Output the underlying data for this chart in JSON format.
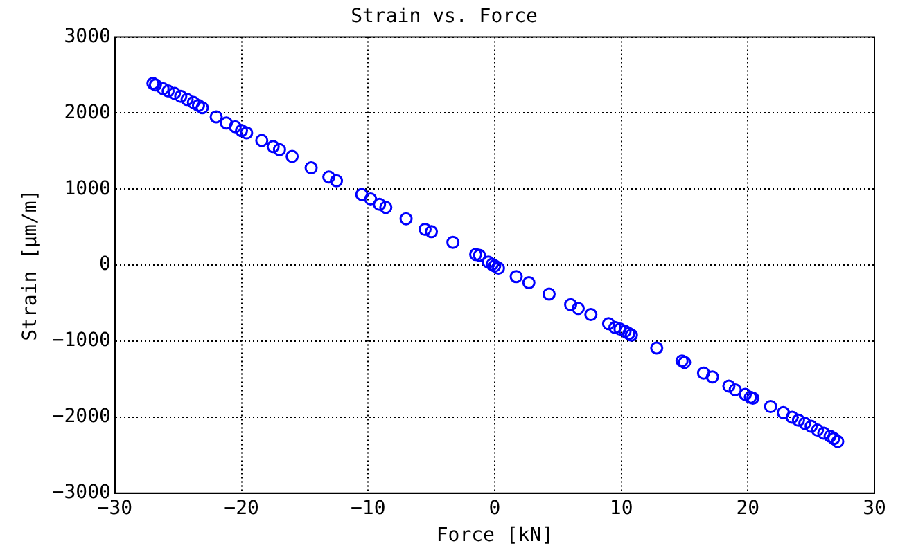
{
  "chart_data": {
    "type": "scatter",
    "title": "Strain vs. Force",
    "xlabel": "Force [kN]",
    "ylabel": "Strain [μm/m]",
    "xlim": [
      -30,
      30
    ],
    "xticks": [
      -30,
      -20,
      -10,
      0,
      10,
      20,
      30
    ],
    "ylim": [
      -3000,
      3000
    ],
    "yticks": [
      -3000,
      -2000,
      -1000,
      0,
      1000,
      2000,
      3000
    ],
    "grid": true,
    "marker": "circle",
    "legend": false,
    "series": [
      {
        "color": "#0000ff",
        "x": [
          -27,
          -26.8,
          -26.2,
          -25.8,
          -25.3,
          -24.8,
          -24.3,
          -23.8,
          -23.4,
          -23.1,
          -22,
          -21.2,
          -20.5,
          -20,
          -19.6,
          -18.4,
          -17.5,
          -17,
          -16,
          -14.5,
          -13.1,
          -12.5,
          -10.5,
          -9.8,
          -9.1,
          -8.6,
          -7,
          -5.5,
          -5,
          -3.3,
          -1.5,
          -1.2,
          -0.5,
          -0.2,
          0,
          0.3,
          1.7,
          2.7,
          4.3,
          6,
          6.6,
          7.6,
          9,
          9.5,
          9.9,
          10.3,
          10.6,
          10.8,
          12.8,
          14.8,
          15,
          16.5,
          17.2,
          18.5,
          19,
          19.8,
          20.2,
          20.4,
          21.8,
          22.8,
          23.5,
          24,
          24.5,
          25,
          25.5,
          26,
          26.5,
          26.8,
          27.1
        ],
        "values": [
          2390,
          2370,
          2320,
          2290,
          2260,
          2220,
          2180,
          2140,
          2100,
          2070,
          1950,
          1870,
          1820,
          1770,
          1740,
          1640,
          1560,
          1520,
          1430,
          1280,
          1160,
          1110,
          930,
          870,
          800,
          760,
          610,
          470,
          440,
          300,
          140,
          130,
          40,
          10,
          -10,
          -40,
          -150,
          -230,
          -380,
          -520,
          -570,
          -650,
          -770,
          -820,
          -840,
          -870,
          -900,
          -920,
          -1090,
          -1260,
          -1280,
          -1420,
          -1470,
          -1590,
          -1640,
          -1700,
          -1740,
          -1750,
          -1860,
          -1940,
          -2000,
          -2040,
          -2080,
          -2120,
          -2170,
          -2210,
          -2250,
          -2280,
          -2320
        ]
      }
    ]
  }
}
